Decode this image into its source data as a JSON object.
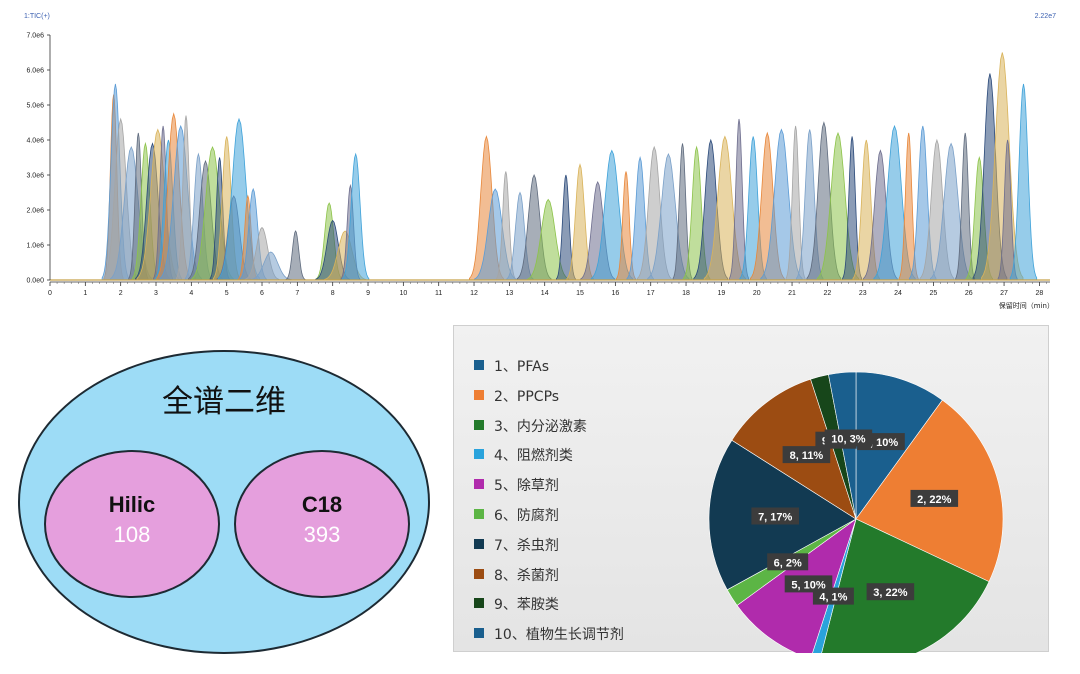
{
  "chart_data": [
    {
      "type": "line",
      "title": "1:TIC(+)",
      "scale_label": "2.22e7",
      "xlabel": "保留时间（min）",
      "ylabel": "",
      "xlim": [
        0,
        28.3
      ],
      "ylim": [
        0,
        7000000.0
      ],
      "x_ticks": [
        "0",
        "1",
        "2",
        "3",
        "4",
        "5",
        "6",
        "7",
        "8",
        "9",
        "10",
        "11",
        "12",
        "13",
        "14",
        "15",
        "16",
        "17",
        "18",
        "19",
        "20",
        "21",
        "22",
        "23",
        "24",
        "25",
        "26",
        "27",
        "28"
      ],
      "y_ticks": [
        "0.0e0",
        "1.0e6",
        "2.0e6",
        "3.0e6",
        "4.0e6",
        "5.0e6",
        "6.0e6",
        "7.0e6"
      ],
      "series_colors": [
        "#e8873a",
        "#5b9bd5",
        "#a5a5a5",
        "#7aa0c8",
        "#5f6b7e",
        "#8dc34a",
        "#2b4a7a",
        "#d9b35a",
        "#6e6e8e",
        "#3fa2d9"
      ],
      "peaks": [
        {
          "x": 1.8,
          "y": 5300000.0
        },
        {
          "x": 1.85,
          "y": 5600000.0
        },
        {
          "x": 2.0,
          "y": 4600000.0
        },
        {
          "x": 2.3,
          "y": 3800000.0
        },
        {
          "x": 2.5,
          "y": 4200000.0
        },
        {
          "x": 2.7,
          "y": 3900000.0
        },
        {
          "x": 2.9,
          "y": 3900000.0
        },
        {
          "x": 3.05,
          "y": 4300000.0
        },
        {
          "x": 3.2,
          "y": 4400000.0
        },
        {
          "x": 3.35,
          "y": 4000000.0
        },
        {
          "x": 3.5,
          "y": 4750000.0
        },
        {
          "x": 3.7,
          "y": 4400000.0
        },
        {
          "x": 3.85,
          "y": 4700000.0
        },
        {
          "x": 4.2,
          "y": 3600000.0
        },
        {
          "x": 4.4,
          "y": 3400000.0
        },
        {
          "x": 4.6,
          "y": 3800000.0
        },
        {
          "x": 4.8,
          "y": 3500000.0
        },
        {
          "x": 5.0,
          "y": 4100000.0
        },
        {
          "x": 5.2,
          "y": 2400000.0
        },
        {
          "x": 5.35,
          "y": 4600000.0
        },
        {
          "x": 5.6,
          "y": 2400000.0
        },
        {
          "x": 5.75,
          "y": 2600000.0
        },
        {
          "x": 6.0,
          "y": 1500000.0
        },
        {
          "x": 6.25,
          "y": 800000.0
        },
        {
          "x": 6.95,
          "y": 1400000.0
        },
        {
          "x": 7.9,
          "y": 2200000.0
        },
        {
          "x": 8.0,
          "y": 1700000.0
        },
        {
          "x": 8.35,
          "y": 1400000.0
        },
        {
          "x": 8.5,
          "y": 2700000.0
        },
        {
          "x": 8.65,
          "y": 3600000.0
        },
        {
          "x": 12.35,
          "y": 4100000.0
        },
        {
          "x": 12.6,
          "y": 2600000.0
        },
        {
          "x": 12.9,
          "y": 3100000.0
        },
        {
          "x": 13.3,
          "y": 2500000.0
        },
        {
          "x": 13.7,
          "y": 3000000.0
        },
        {
          "x": 14.1,
          "y": 2300000.0
        },
        {
          "x": 14.6,
          "y": 3000000.0
        },
        {
          "x": 15.0,
          "y": 3300000.0
        },
        {
          "x": 15.5,
          "y": 2800000.0
        },
        {
          "x": 15.9,
          "y": 3700000.0
        },
        {
          "x": 16.3,
          "y": 3100000.0
        },
        {
          "x": 16.7,
          "y": 3500000.0
        },
        {
          "x": 17.1,
          "y": 3800000.0
        },
        {
          "x": 17.5,
          "y": 3600000.0
        },
        {
          "x": 17.9,
          "y": 3900000.0
        },
        {
          "x": 18.3,
          "y": 3800000.0
        },
        {
          "x": 18.7,
          "y": 4000000.0
        },
        {
          "x": 19.1,
          "y": 4100000.0
        },
        {
          "x": 19.5,
          "y": 4600000.0
        },
        {
          "x": 19.9,
          "y": 4100000.0
        },
        {
          "x": 20.3,
          "y": 4200000.0
        },
        {
          "x": 20.7,
          "y": 4300000.0
        },
        {
          "x": 21.1,
          "y": 4400000.0
        },
        {
          "x": 21.5,
          "y": 4300000.0
        },
        {
          "x": 21.9,
          "y": 4500000.0
        },
        {
          "x": 22.3,
          "y": 4200000.0
        },
        {
          "x": 22.7,
          "y": 4100000.0
        },
        {
          "x": 23.1,
          "y": 4000000.0
        },
        {
          "x": 23.5,
          "y": 3700000.0
        },
        {
          "x": 23.9,
          "y": 4400000.0
        },
        {
          "x": 24.3,
          "y": 4200000.0
        },
        {
          "x": 24.7,
          "y": 4400000.0
        },
        {
          "x": 25.1,
          "y": 4000000.0
        },
        {
          "x": 25.5,
          "y": 3900000.0
        },
        {
          "x": 25.9,
          "y": 4200000.0
        },
        {
          "x": 26.3,
          "y": 3500000.0
        },
        {
          "x": 26.6,
          "y": 5900000.0
        },
        {
          "x": 26.95,
          "y": 6500000.0
        },
        {
          "x": 27.1,
          "y": 4000000.0
        },
        {
          "x": 27.55,
          "y": 5600000.0
        }
      ]
    },
    {
      "type": "pie",
      "legend": [
        "1、PFAs",
        "2、PPCPs",
        "3、内分泌激素",
        "4、阻燃剂类",
        "5、除草剂",
        "6、防腐剂",
        "7、杀虫剂",
        "8、杀菌剂",
        "9、苯胺类",
        "10、植物生长调节剂"
      ],
      "values": [
        10,
        22,
        22,
        1,
        10,
        2,
        17,
        11,
        2,
        3
      ],
      "data_labels": [
        "1, 10%",
        "2, 22%",
        "3, 22%",
        "4, 1%",
        "5, 10%",
        "6, 2%",
        "7, 17%",
        "8, 11%",
        "9, 2%",
        "10, 3%"
      ],
      "colors": [
        "#1a5f8e",
        "#ee7e33",
        "#237a2b",
        "#2aa3dc",
        "#b02bac",
        "#5cb545",
        "#123a52",
        "#9c4c12",
        "#17461a",
        "#1a5f8e"
      ],
      "legend_position": "left"
    }
  ],
  "venn": {
    "title": "全谱二维",
    "left": {
      "name": "Hilic",
      "count": "108"
    },
    "right": {
      "name": "C18",
      "count": "393"
    },
    "colors": {
      "outer": "#9ddcf6",
      "inner": "#e59fdd"
    }
  }
}
